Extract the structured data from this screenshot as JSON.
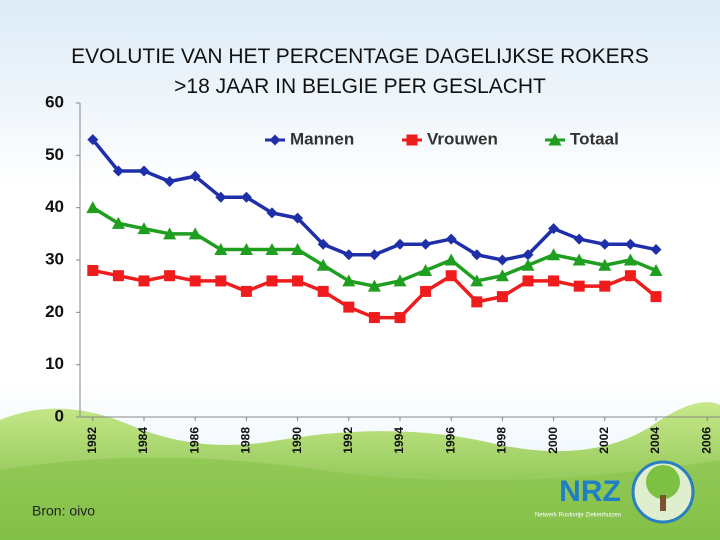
{
  "chart_data": {
    "type": "line",
    "title": "EVOLUTIE VAN HET PERCENTAGE DAGELIJKSE ROKERS\n>18 JAAR IN BELGIE PER GESLACHT",
    "x": [
      1982,
      1983,
      1984,
      1985,
      1986,
      1987,
      1988,
      1989,
      1990,
      1991,
      1992,
      1993,
      1994,
      1995,
      1996,
      1997,
      1998,
      1999,
      2000,
      2001,
      2002,
      2003,
      2004
    ],
    "series": [
      {
        "name": "Mannen",
        "color": "#1f2fa8",
        "marker": "diamond",
        "values": [
          53,
          47,
          47,
          45,
          46,
          42,
          42,
          39,
          38,
          33,
          31,
          31,
          33,
          33,
          34,
          31,
          30,
          31,
          36,
          34,
          33,
          33,
          32
        ]
      },
      {
        "name": "Vrouwen",
        "color": "#ee1c1c",
        "marker": "square",
        "values": [
          28,
          27,
          26,
          27,
          26,
          26,
          24,
          26,
          26,
          24,
          21,
          19,
          19,
          24,
          27,
          22,
          23,
          26,
          26,
          25,
          25,
          27,
          23
        ]
      },
      {
        "name": "Totaal",
        "color": "#1f9e1f",
        "marker": "triangle",
        "values": [
          40,
          37,
          36,
          35,
          35,
          32,
          32,
          32,
          32,
          29,
          26,
          25,
          26,
          28,
          30,
          26,
          27,
          29,
          31,
          30,
          29,
          30,
          28
        ]
      }
    ],
    "xlim": [
      1981.5,
      2006.5
    ],
    "xticks": [
      1982,
      1984,
      1986,
      1988,
      1990,
      1992,
      1994,
      1996,
      1998,
      2000,
      2002,
      2004,
      2006
    ],
    "ylim": [
      0,
      60
    ],
    "yticks": [
      0,
      10,
      20,
      30,
      40,
      50,
      60
    ],
    "grid": false,
    "legend": "top",
    "source": "Bron: oivo"
  },
  "logo": {
    "title": "NRZ",
    "subtitle": "Netwerk Rookvrije Ziekenhuizen"
  }
}
